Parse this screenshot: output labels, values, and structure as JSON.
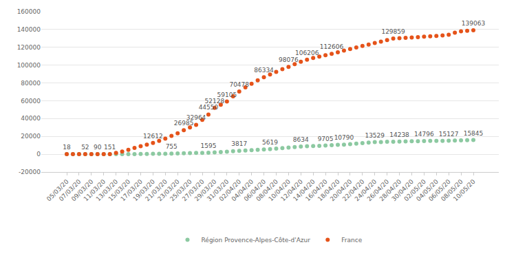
{
  "chart_data": {
    "type": "scatter",
    "categories": [
      "05/03/20",
      null,
      "07/03/20",
      null,
      "09/03/20",
      null,
      "11/03/20",
      null,
      "13/03/20",
      null,
      "15/03/20",
      null,
      "17/03/20",
      null,
      "19/03/20",
      null,
      "21/03/20",
      null,
      "23/03/20",
      null,
      "25/03/20",
      null,
      "27/03/20",
      null,
      "29/03/20",
      null,
      "31/03/20",
      null,
      "02/04/20",
      null,
      "04/04/20",
      null,
      "06/04/20",
      null,
      "08/04/20",
      null,
      "10/04/20",
      null,
      "12/04/20",
      null,
      "14/04/20",
      null,
      "16/04/20",
      null,
      "18/04/20",
      null,
      "20/04/20",
      null,
      "22/04/20",
      null,
      "24/04/20",
      null,
      "26/04/20",
      null,
      "28/04/20",
      null,
      "30/04/20",
      null,
      "02/05/20",
      null,
      "04/05/20",
      null,
      "06/05/20",
      null,
      "08/05/20",
      null,
      "10/05/20"
    ],
    "series": [
      {
        "name": "Région Provence-Alpes-Côte-d'Azur",
        "color": "#8cc9a1",
        "marker": "circle",
        "values": [
          2,
          3,
          5,
          8,
          12,
          18,
          25,
          35,
          50,
          80,
          120,
          180,
          260,
          350,
          430,
          500,
          560,
          755,
          900,
          1050,
          1200,
          1350,
          1470,
          1595,
          2000,
          2400,
          2800,
          3300,
          3817,
          4200,
          4600,
          5000,
          5300,
          5619,
          6200,
          6900,
          7500,
          8100,
          8634,
          8900,
          9200,
          9450,
          9705,
          10200,
          10500,
          10790,
          11300,
          11900,
          12500,
          13000,
          13529,
          13700,
          13900,
          14050,
          14238,
          14380,
          14520,
          14660,
          14796,
          14880,
          14960,
          15040,
          15127,
          15300,
          15500,
          15680,
          15845
        ],
        "value_labels": [
          null,
          null,
          null,
          null,
          null,
          null,
          null,
          null,
          null,
          null,
          null,
          null,
          null,
          null,
          null,
          null,
          null,
          "755",
          null,
          null,
          null,
          null,
          null,
          "1595",
          null,
          null,
          null,
          null,
          "3817",
          null,
          null,
          null,
          null,
          "5619",
          null,
          null,
          null,
          null,
          "8634",
          null,
          null,
          null,
          "9705",
          null,
          null,
          "10790",
          null,
          null,
          null,
          null,
          "13529",
          null,
          null,
          null,
          "14238",
          null,
          null,
          null,
          "14796",
          null,
          null,
          null,
          "15127",
          null,
          null,
          null,
          "15845"
        ]
      },
      {
        "name": "France",
        "color": "#e5531a",
        "marker": "circle",
        "values": [
          18,
          25,
          35,
          52,
          70,
          90,
          120,
          151,
          1500,
          3000,
          5000,
          7000,
          9000,
          10800,
          12612,
          15000,
          17500,
          20500,
          23500,
          26985,
          30000,
          32964,
          38500,
          44550,
          52128,
          55500,
          59105,
          65000,
          70478,
          75000,
          79000,
          83000,
          86334,
          89500,
          92500,
          95500,
          98076,
          101000,
          103800,
          106206,
          108000,
          109600,
          111100,
          112606,
          114500,
          116300,
          118100,
          119900,
          121600,
          123200,
          124800,
          126400,
          128100,
          129859,
          130300,
          130700,
          131100,
          131500,
          131900,
          132300,
          132800,
          133400,
          134200,
          136500,
          138000,
          138600,
          139063
        ],
        "value_labels": [
          "18",
          null,
          null,
          "52",
          null,
          "90",
          null,
          "151",
          null,
          null,
          null,
          null,
          null,
          null,
          "12612",
          null,
          null,
          null,
          null,
          "26985",
          null,
          "32964",
          null,
          "44550",
          "52128",
          null,
          "59105",
          null,
          "70478",
          null,
          null,
          null,
          "86334",
          null,
          null,
          null,
          "98076",
          null,
          null,
          "106206",
          null,
          null,
          null,
          "112606",
          null,
          null,
          null,
          null,
          null,
          null,
          null,
          null,
          null,
          "129859",
          null,
          null,
          null,
          null,
          null,
          null,
          null,
          null,
          null,
          null,
          null,
          null,
          "139063"
        ]
      }
    ],
    "ylim": [
      -20000,
      160000
    ],
    "yticks": [
      -20000,
      0,
      20000,
      40000,
      60000,
      80000,
      100000,
      120000,
      140000,
      160000
    ],
    "grid": true,
    "legend": "bottom",
    "data_labels": true
  }
}
